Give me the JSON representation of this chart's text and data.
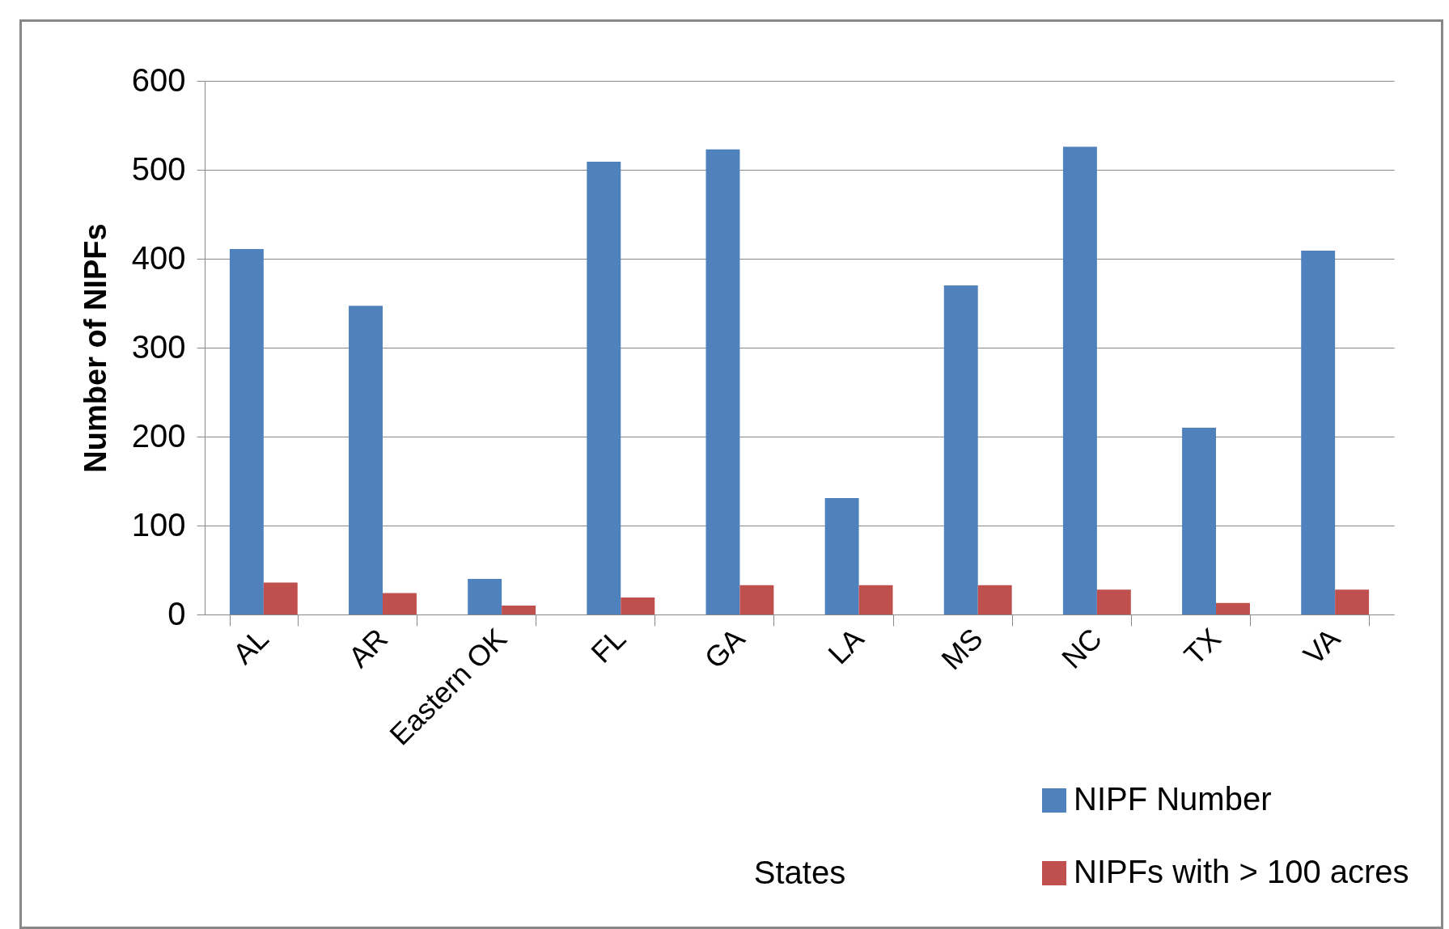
{
  "chart_data": {
    "type": "bar",
    "categories": [
      "AL",
      "AR",
      "Eastern OK",
      "FL",
      "GA",
      "LA",
      "MS",
      "NC",
      "TX",
      "VA"
    ],
    "xlabel": "States",
    "ylabel": "Number of NIPFs",
    "series": [
      {
        "name": "NIPF Number",
        "color": "#4f81bd",
        "values": [
          411,
          347,
          40,
          509,
          523,
          131,
          370,
          526,
          210,
          409
        ]
      },
      {
        "name": "NIPFs with > 100 acres",
        "color": "#c0504d",
        "values": [
          36,
          24,
          10,
          19,
          33,
          33,
          33,
          28,
          13,
          28
        ]
      }
    ],
    "ylim": [
      0,
      600
    ],
    "yticks": [
      0,
      100,
      200,
      300,
      400,
      500,
      600
    ],
    "grid": "y",
    "legend": "bottom right"
  }
}
